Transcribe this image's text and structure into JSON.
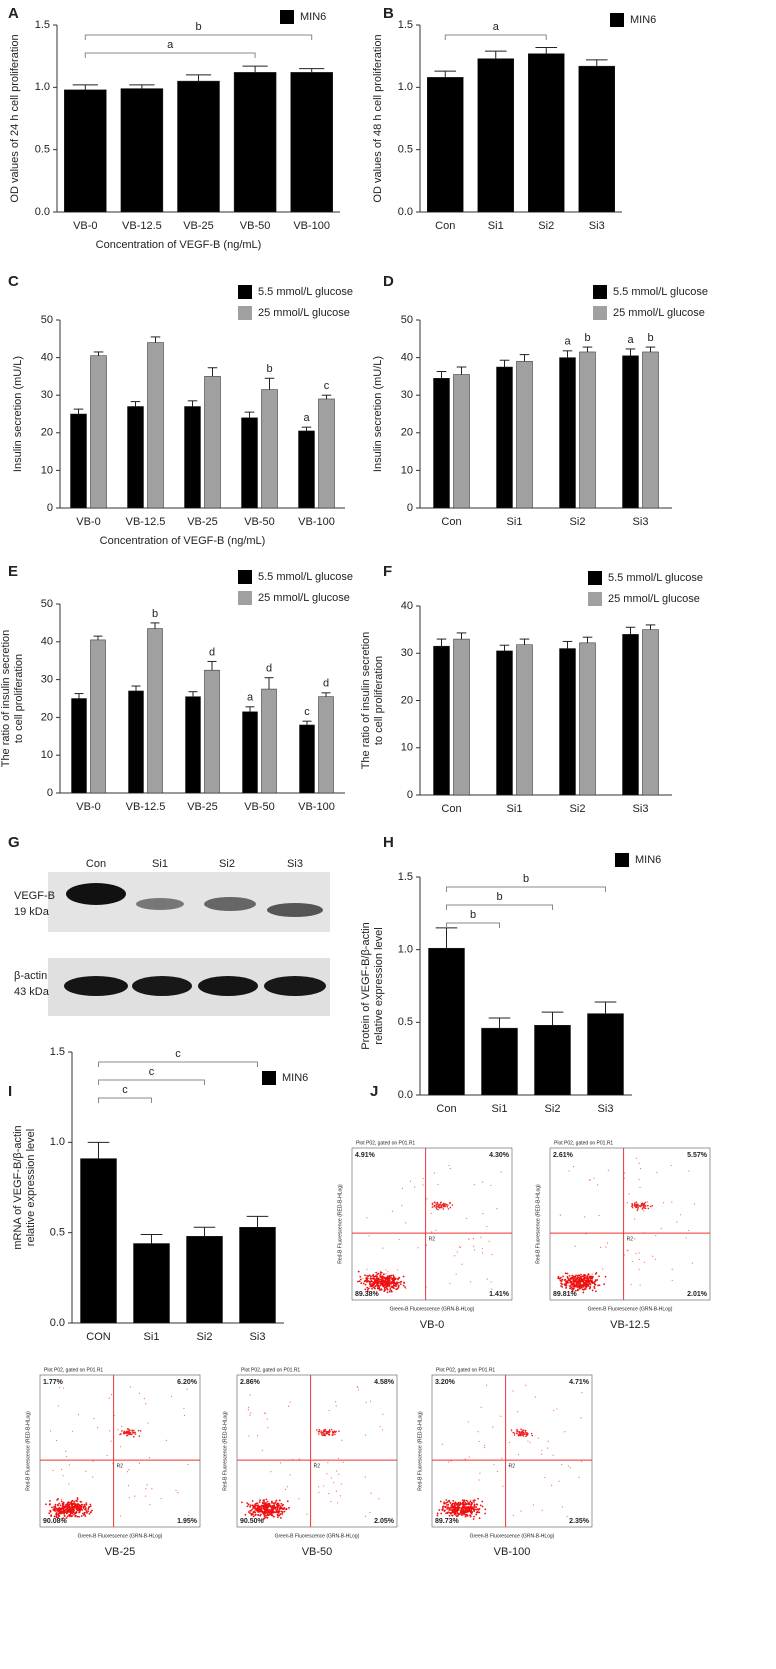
{
  "chart_data": [
    {
      "type": "bar",
      "panel": "A",
      "ylabel": [
        "OD values of 24 h cell proliferation"
      ],
      "xlabel": "Concentration of VEGF-B (ng/mL)",
      "categories": [
        "VB-0",
        "VB-12.5",
        "VB-25",
        "VB-50",
        "VB-100"
      ],
      "series": [
        {
          "name": "MIN6",
          "color": "#000000",
          "values": [
            0.98,
            0.99,
            1.05,
            1.12,
            1.12
          ],
          "errors": [
            0.04,
            0.03,
            0.05,
            0.05,
            0.03
          ]
        }
      ],
      "ylim": [
        0,
        1.5
      ],
      "yticks": [
        {
          "value": 0,
          "label": "0.0"
        },
        {
          "value": 0.5,
          "label": "0.5"
        },
        {
          "value": 1,
          "label": "1.0"
        },
        {
          "value": 1.5,
          "label": "1.5"
        }
      ],
      "brackets": [
        {
          "label": "a",
          "span": [
            0,
            3
          ]
        },
        {
          "label": "b",
          "span": [
            0,
            4
          ]
        }
      ],
      "legend": "upper right"
    },
    {
      "type": "bar",
      "panel": "B",
      "ylabel": [
        "OD values of 48 h cell proliferation"
      ],
      "categories": [
        "Con",
        "Si1",
        "Si2",
        "Si3"
      ],
      "series": [
        {
          "name": "MIN6",
          "color": "#000000",
          "values": [
            1.08,
            1.23,
            1.27,
            1.17
          ],
          "errors": [
            0.05,
            0.06,
            0.05,
            0.05
          ]
        }
      ],
      "ylim": [
        0,
        1.5
      ],
      "yticks": [
        {
          "value": 0,
          "label": "0.0"
        },
        {
          "value": 0.5,
          "label": "0.5"
        },
        {
          "value": 1,
          "label": "1.0"
        },
        {
          "value": 1.5,
          "label": "1.5"
        }
      ],
      "brackets": [
        {
          "label": "a",
          "span": [
            0,
            2
          ]
        }
      ],
      "legend": "upper right"
    },
    {
      "type": "bar",
      "panel": "C",
      "ylabel": [
        "Insulin secretion (mU/L)"
      ],
      "xlabel": "Concentration of VEGF-B (ng/mL)",
      "categories": [
        "VB-0",
        "VB-12.5",
        "VB-25",
        "VB-50",
        "VB-100"
      ],
      "series": [
        {
          "name": "5.5 mmol/L glucose",
          "color": "#000000",
          "values": [
            25,
            27,
            27,
            24,
            20.5
          ],
          "errors": [
            1.3,
            1.3,
            1.5,
            1.5,
            1
          ],
          "annotations": [
            null,
            null,
            null,
            null,
            "a"
          ]
        },
        {
          "name": "25 mmol/L glucose",
          "color": "#a0a0a0",
          "values": [
            40.5,
            44,
            35,
            31.5,
            29
          ],
          "errors": [
            1,
            1.5,
            2.3,
            3,
            1
          ],
          "annotations": [
            null,
            null,
            null,
            "b",
            "c"
          ]
        }
      ],
      "ylim": [
        0,
        50
      ],
      "yticks": [
        0,
        10,
        20,
        30,
        40,
        50
      ],
      "legend": "upper right"
    },
    {
      "type": "bar",
      "panel": "D",
      "ylabel": [
        "Insulin secretion (mU/L)"
      ],
      "categories": [
        "Con",
        "Si1",
        "Si2",
        "Si3"
      ],
      "series": [
        {
          "name": "5.5 mmol/L glucose",
          "color": "#000000",
          "values": [
            34.5,
            37.5,
            40,
            40.5
          ],
          "errors": [
            1.8,
            1.8,
            1.8,
            1.8
          ],
          "annotations": [
            null,
            null,
            "a",
            "a"
          ]
        },
        {
          "name": "25 mmol/L glucose",
          "color": "#a0a0a0",
          "values": [
            35.5,
            39,
            41.5,
            41.5
          ],
          "errors": [
            2,
            1.8,
            1.3,
            1.3
          ],
          "annotations": [
            null,
            null,
            "b",
            "b"
          ]
        }
      ],
      "ylim": [
        0,
        50
      ],
      "yticks": [
        0,
        10,
        20,
        30,
        40,
        50
      ],
      "legend": "upper right"
    },
    {
      "type": "bar",
      "panel": "E",
      "ylabel": [
        "The ratio of insulin secretion",
        "to cell proliferation"
      ],
      "categories": [
        "VB-0",
        "VB-12.5",
        "VB-25",
        "VB-50",
        "VB-100"
      ],
      "series": [
        {
          "name": "5.5 mmol/L glucose",
          "color": "#000000",
          "values": [
            25,
            27,
            25.5,
            21.5,
            18
          ],
          "errors": [
            1.3,
            1.3,
            1.3,
            1.3,
            1
          ],
          "annotations": [
            null,
            null,
            null,
            "a",
            "c"
          ]
        },
        {
          "name": "25 mmol/L glucose",
          "color": "#a0a0a0",
          "values": [
            40.5,
            43.5,
            32.5,
            27.5,
            25.5
          ],
          "errors": [
            1,
            1.5,
            2.3,
            3,
            1
          ],
          "annotations": [
            null,
            "b",
            "d",
            "d",
            "d"
          ]
        }
      ],
      "ylim": [
        0,
        50
      ],
      "yticks": [
        0,
        10,
        20,
        30,
        40,
        50
      ],
      "legend": "upper right"
    },
    {
      "type": "bar",
      "panel": "F",
      "ylabel": [
        "The ratio of insulin secretion",
        "to cell proliferation"
      ],
      "categories": [
        "Con",
        "Si1",
        "Si2",
        "Si3"
      ],
      "series": [
        {
          "name": "5.5 mmol/L glucose",
          "color": "#000000",
          "values": [
            31.5,
            30.5,
            31,
            34
          ],
          "errors": [
            1.5,
            1.2,
            1.5,
            1.5
          ]
        },
        {
          "name": "25 mmol/L glucose",
          "color": "#a0a0a0",
          "values": [
            33,
            31.8,
            32.2,
            35
          ],
          "errors": [
            1.3,
            1.2,
            1.2,
            1
          ]
        }
      ],
      "ylim": [
        0,
        40
      ],
      "yticks": [
        0,
        10,
        20,
        30,
        40
      ],
      "legend": "upper right"
    },
    {
      "type": "bar",
      "panel": "H",
      "ylabel": [
        "Protein of VEGF-B/β-actin",
        "relative  expression level"
      ],
      "categories": [
        "Con",
        "Si1",
        "Si2",
        "Si3"
      ],
      "series": [
        {
          "name": "MIN6",
          "color": "#000000",
          "values": [
            1.01,
            0.46,
            0.48,
            0.56
          ],
          "errors": [
            0.14,
            0.07,
            0.09,
            0.08
          ]
        }
      ],
      "ylim": [
        0,
        1.5
      ],
      "yticks": [
        {
          "value": 0,
          "label": "0.0"
        },
        {
          "value": 0.5,
          "label": "0.5"
        },
        {
          "value": 1,
          "label": "1.0"
        },
        {
          "value": 1.5,
          "label": "1.5"
        }
      ],
      "brackets": [
        {
          "label": "b",
          "span": [
            0,
            1
          ]
        },
        {
          "label": "b",
          "span": [
            0,
            2
          ]
        },
        {
          "label": "b",
          "span": [
            0,
            3
          ]
        }
      ],
      "legend": "upper right"
    },
    {
      "type": "bar",
      "panel": "I",
      "ylabel": [
        "mRNA of VEGF-B/β-actin",
        "relative expression level"
      ],
      "categories": [
        "CON",
        "Si1",
        "Si2",
        "Si3"
      ],
      "series": [
        {
          "name": "MIN6",
          "color": "#000000",
          "values": [
            0.91,
            0.44,
            0.48,
            0.53
          ],
          "errors": [
            0.09,
            0.05,
            0.05,
            0.06
          ]
        }
      ],
      "ylim": [
        0,
        1.5
      ],
      "yticks": [
        {
          "value": 0,
          "label": "0.0"
        },
        {
          "value": 0.5,
          "label": "0.5"
        },
        {
          "value": 1,
          "label": "1.0"
        },
        {
          "value": 1.5,
          "label": "1.5"
        }
      ],
      "brackets": [
        {
          "label": "c",
          "span": [
            0,
            1
          ]
        },
        {
          "label": "c",
          "span": [
            0,
            2
          ]
        },
        {
          "label": "c",
          "span": [
            0,
            3
          ]
        }
      ],
      "legend": "upper right"
    }
  ],
  "blot": {
    "panel": "G",
    "lanes": [
      "Con",
      "Si1",
      "Si2",
      "Si3"
    ],
    "rows": [
      {
        "protein": "VEGF-B",
        "size": "19 kDa"
      },
      {
        "protein": "β-actin",
        "size": "43 kDa"
      }
    ]
  },
  "flow": {
    "panel": "J",
    "title": "Plot P02, gated on P01.R1",
    "ylabel": "Red-B Fluorescence (RED-B-HLog)",
    "xlabel": "Green-B Fluorescence (GRN-B-HLog)",
    "gate": "R2",
    "plots": [
      {
        "label": "VB-0",
        "upper_left": "4.91%",
        "upper_right": "4.30%",
        "lower_left": "89.38%",
        "lower_right": "1.41%"
      },
      {
        "label": "VB-12.5",
        "upper_left": "2.61%",
        "upper_right": "5.57%",
        "lower_left": "89.81%",
        "lower_right": "2.01%"
      },
      {
        "label": "VB-25",
        "upper_left": "1.77%",
        "upper_right": "6.20%",
        "lower_left": "90.08%",
        "lower_right": "1.95%"
      },
      {
        "label": "VB-50",
        "upper_left": "2.86%",
        "upper_right": "4.58%",
        "lower_left": "90.50%",
        "lower_right": "2.05%"
      },
      {
        "label": "VB-100",
        "upper_left": "3.20%",
        "upper_right": "4.71%",
        "lower_left": "89.73%",
        "lower_right": "2.35%"
      }
    ]
  }
}
